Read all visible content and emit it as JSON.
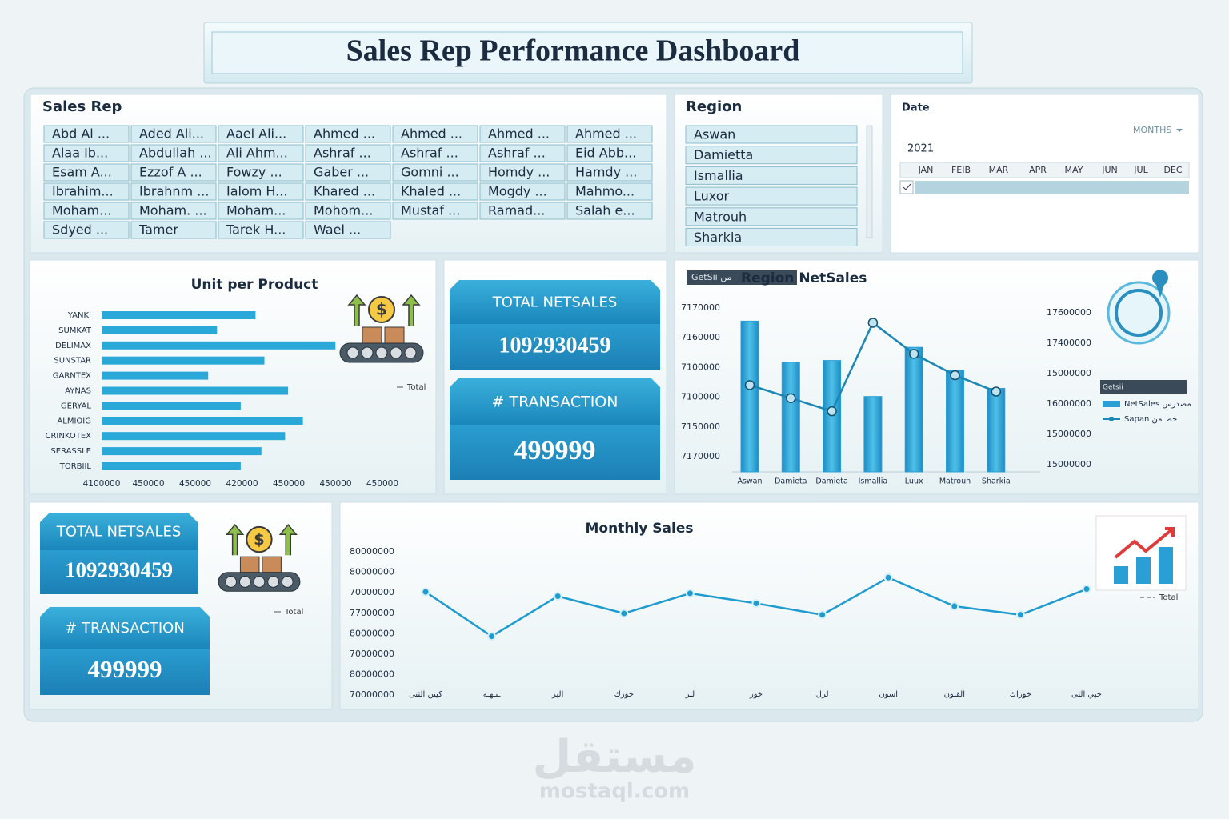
{
  "header": {
    "title": "Sales Rep Performance Dashboard"
  },
  "sales_rep_slicer": {
    "title": "Sales Rep",
    "items": [
      "Abd Al ...",
      "Aded Ali...",
      "Aael Ali...",
      "Ahmed ...",
      "Ahmed ...",
      "Ahmed ...",
      "Ahmed ...",
      "Alaa Ib...",
      "Abdullah ...",
      "Ali Ahm...",
      "Ashraf ...",
      "Ashraf ...",
      "Ashraf ...",
      "Eid Abb...",
      "Esam A...",
      "Ezzof A ...",
      "Fowzy ...",
      "Gaber ...",
      "Gomni ...",
      "Homdy ...",
      "Hamdy ...",
      "Ibrahim...",
      "Ibrahnm ...",
      "Ialom H...",
      "Khared ...",
      "Khaled ...",
      "Mogdy ...",
      "Mahmo...",
      "Moham...",
      "Moham. ...",
      "Moham...",
      "Mohom...",
      "Mustaf ...",
      "Ramad...",
      "Salah e...",
      "Sdyed ...",
      "Tamer",
      "Tarek H...",
      "Wael ..."
    ]
  },
  "region_slicer": {
    "title": "Region",
    "items": [
      "Aswan",
      "Damietta",
      "Ismallia",
      "Luxor",
      "Matrouh",
      "Sharkia"
    ]
  },
  "date_slicer": {
    "title": "Date",
    "level": "MONTHS",
    "year": "2021",
    "months": [
      "JAN",
      "FEIB",
      "MAR",
      "APR",
      "MAY",
      "JUN",
      "JUL",
      "DEC"
    ]
  },
  "kpi_cards": [
    {
      "label": "TOTAL NETSALES",
      "value": 1092930459
    },
    {
      "label": "# TRANSACTION",
      "value": 499999
    },
    {
      "label": "TOTAL NETSALES",
      "value": 1092930459
    },
    {
      "label": "# TRANSACTION",
      "value": 499999
    }
  ],
  "chart_data": [
    {
      "type": "hbar",
      "title": "Unit per Product",
      "categories": [
        "YANKI",
        "SUMKAT",
        "DELIMAX",
        "SUNSTAR",
        "GARNTEX",
        "AYNAS",
        "GERYAL",
        "ALMIOIG",
        "CRINKOTEX",
        "SERASSLE",
        "TORBIIL"
      ],
      "values": [
        52,
        39,
        79,
        55,
        36,
        63,
        47,
        68,
        62,
        54,
        47
      ],
      "color": "#2aa9d9",
      "xlim": [
        0,
        100
      ],
      "x_axis_labels": [
        "4100000",
        "450000",
        "450000",
        "420000",
        "450000",
        "450000",
        "450000"
      ],
      "legend": "Total"
    },
    {
      "type": "combo",
      "title": "Region NetSales",
      "badge": "GetSii من",
      "legend_title": "Getsii",
      "categories": [
        "Aswan",
        "Damieta",
        "Damieta",
        "Ismallia",
        "Luux",
        "Matrouh",
        "Sharkia"
      ],
      "series": [
        {
          "name": "NetSales مصدرس",
          "type": "bar",
          "color": "#2a9fd6",
          "values": [
            92,
            67,
            68,
            46,
            76,
            62,
            51
          ]
        },
        {
          "name": "Sapan خط من",
          "type": "line",
          "axis": "y2",
          "color": "#1c86b5",
          "values": [
            53,
            45,
            37,
            91,
            72,
            59,
            49
          ]
        }
      ],
      "ylim": [
        0,
        100
      ],
      "y2lim": [
        0,
        100
      ],
      "y_axis_labels": [
        "7170000",
        "7160000",
        "7100000",
        "7100000",
        "7150000",
        "7170000"
      ],
      "y2_axis_labels": [
        "17600000",
        "17400000",
        "15000000",
        "16000000",
        "15000000",
        "15000000"
      ]
    },
    {
      "type": "line",
      "title": "Monthly Sales",
      "categories": [
        "كينن الثنى",
        "ـنـهـة",
        "البز",
        "خوزك",
        "لبز",
        "خوز",
        "لرل",
        "اسون",
        "القبون",
        "خوزاك",
        "خبي الثى"
      ],
      "series": [
        {
          "name": "Total",
          "color": "#1e9bcf",
          "values": [
            72,
            41,
            69,
            57,
            71,
            64,
            56,
            82,
            62,
            56,
            74
          ]
        }
      ],
      "ylim": [
        0,
        100
      ],
      "y_axis_labels": [
        "80000000",
        "80000000",
        "70000000",
        "77000000",
        "80000000",
        "70000000",
        "80000000",
        "70000000"
      ]
    }
  ],
  "watermark": {
    "arabic": "مستقل",
    "site": "mostaql.com"
  }
}
